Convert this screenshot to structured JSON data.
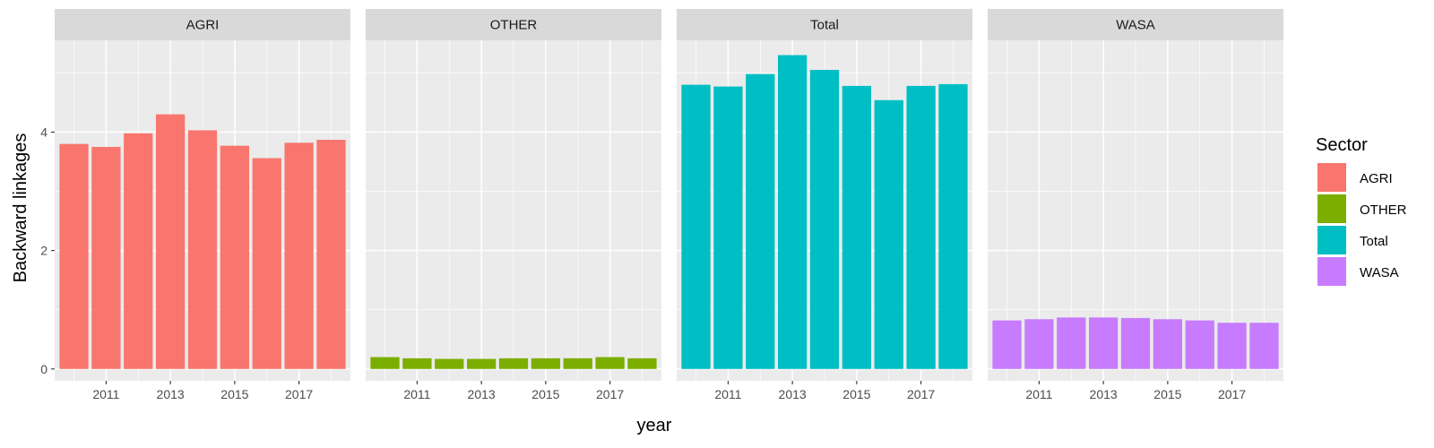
{
  "chart_data": {
    "type": "bar",
    "facet_by": "Sector",
    "x": [
      2010,
      2011,
      2012,
      2013,
      2014,
      2015,
      2016,
      2017,
      2018
    ],
    "x_tick_labels": [
      "2011",
      "2013",
      "2015",
      "2017"
    ],
    "y_tick_labels": [
      "0",
      "2",
      "4"
    ],
    "xlabel": "year",
    "ylabel": "Backward linkages",
    "ylim": [
      -0.2,
      5.55
    ],
    "xlim": [
      2009.4,
      2018.6
    ],
    "grid": true,
    "legend": {
      "title": "Sector",
      "placement": "right",
      "entries": [
        {
          "label": "AGRI",
          "color": "#F8766D"
        },
        {
          "label": "OTHER",
          "color": "#7CAE00"
        },
        {
          "label": "Total",
          "color": "#00BFC4"
        },
        {
          "label": "WASA",
          "color": "#C77CFF"
        }
      ]
    },
    "series": [
      {
        "name": "AGRI",
        "color": "#F8766D",
        "values": [
          3.8,
          3.75,
          3.98,
          4.3,
          4.03,
          3.77,
          3.56,
          3.82,
          3.87
        ]
      },
      {
        "name": "OTHER",
        "color": "#7CAE00",
        "values": [
          0.2,
          0.18,
          0.17,
          0.17,
          0.18,
          0.18,
          0.18,
          0.2,
          0.18
        ]
      },
      {
        "name": "Total",
        "color": "#00BFC4",
        "values": [
          4.8,
          4.77,
          4.98,
          5.3,
          5.05,
          4.78,
          4.54,
          4.78,
          4.81
        ]
      },
      {
        "name": "WASA",
        "color": "#C77CFF",
        "values": [
          0.82,
          0.84,
          0.87,
          0.87,
          0.86,
          0.84,
          0.82,
          0.78,
          0.78
        ]
      }
    ]
  }
}
